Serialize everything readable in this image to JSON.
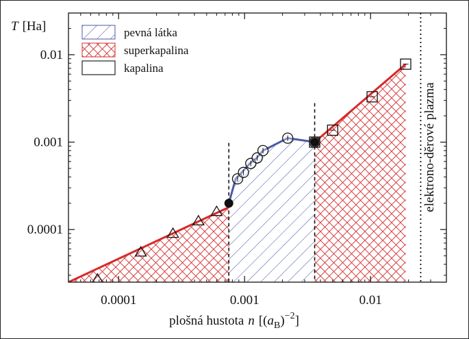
{
  "chart_data": {
    "type": "scatter",
    "x_scale": "log",
    "y_scale": "log",
    "xlim": [
      4e-05,
      0.04
    ],
    "ylim": [
      2.5e-05,
      0.03
    ],
    "xlabel_main": "plošná hustota",
    "xlabel_var": "n",
    "xlabel_unit_open": "[(",
    "xlabel_unit_var": "a",
    "xlabel_unit_sub": "B",
    "xlabel_unit_close": ")",
    "xlabel_unit_exp": "−2",
    "xlabel_unit_end": "]",
    "ylabel_var": "T",
    "ylabel_unit": "[Ha]",
    "x_ticks": [
      {
        "value": 0.0001,
        "label": "0.0001"
      },
      {
        "value": 0.001,
        "label": "0.001"
      },
      {
        "value": 0.01,
        "label": "0.01"
      }
    ],
    "y_ticks": [
      {
        "value": 0.0001,
        "label": "0.0001"
      },
      {
        "value": 0.001,
        "label": "0.001"
      },
      {
        "value": 0.01,
        "label": "0.01"
      }
    ],
    "legend": [
      {
        "label": "pevná látka",
        "pattern": "diagonal-hatch",
        "color": "#4a5aa8"
      },
      {
        "label": "superkapalina",
        "pattern": "cross-hatch",
        "color": "#d42a2a"
      },
      {
        "label": "kapalina",
        "pattern": "empty",
        "color": "#222222"
      }
    ],
    "legend_position": "top-left",
    "annotation": "elektrono-děrové plazma",
    "plasma_line_x": 0.025,
    "phase_boundaries": [
      0.00075,
      0.0036
    ],
    "colors": {
      "red": "#d42a2a",
      "blue": "#4a5aa8",
      "black": "#111111"
    },
    "red_line_low": [
      [
        4e-05,
        2.5e-05
      ],
      [
        0.00075,
        0.00018
      ]
    ],
    "blue_curve": [
      [
        0.00075,
        0.0002
      ],
      [
        0.00085,
        0.00038
      ],
      [
        0.00095,
        0.00045
      ],
      [
        0.0011,
        0.00057
      ],
      [
        0.00125,
        0.00066
      ],
      [
        0.0014,
        0.0008
      ],
      [
        0.0022,
        0.00111
      ],
      [
        0.0036,
        0.001
      ]
    ],
    "red_line_high": [
      [
        0.0036,
        0.001
      ],
      [
        0.019,
        0.0078
      ]
    ],
    "triangles": [
      [
        6.8e-05,
        2.7e-05
      ],
      [
        0.00015,
        5.5e-05
      ],
      [
        0.00027,
        9e-05
      ],
      [
        0.00043,
        0.000125
      ],
      [
        0.0006,
        0.00016
      ]
    ],
    "circles": [
      [
        0.00088,
        0.00038
      ],
      [
        0.00098,
        0.00045
      ],
      [
        0.00112,
        0.00057
      ],
      [
        0.00126,
        0.00066
      ],
      [
        0.0014,
        0.0008
      ],
      [
        0.0022,
        0.00111
      ],
      [
        0.0036,
        0.001
      ]
    ],
    "filled_circles": [
      [
        0.00075,
        0.0002
      ],
      [
        0.0036,
        0.001
      ]
    ],
    "squares": [
      [
        0.0036,
        0.001
      ],
      [
        0.005,
        0.00137
      ],
      [
        0.0103,
        0.0033
      ],
      [
        0.019,
        0.0078
      ]
    ]
  }
}
